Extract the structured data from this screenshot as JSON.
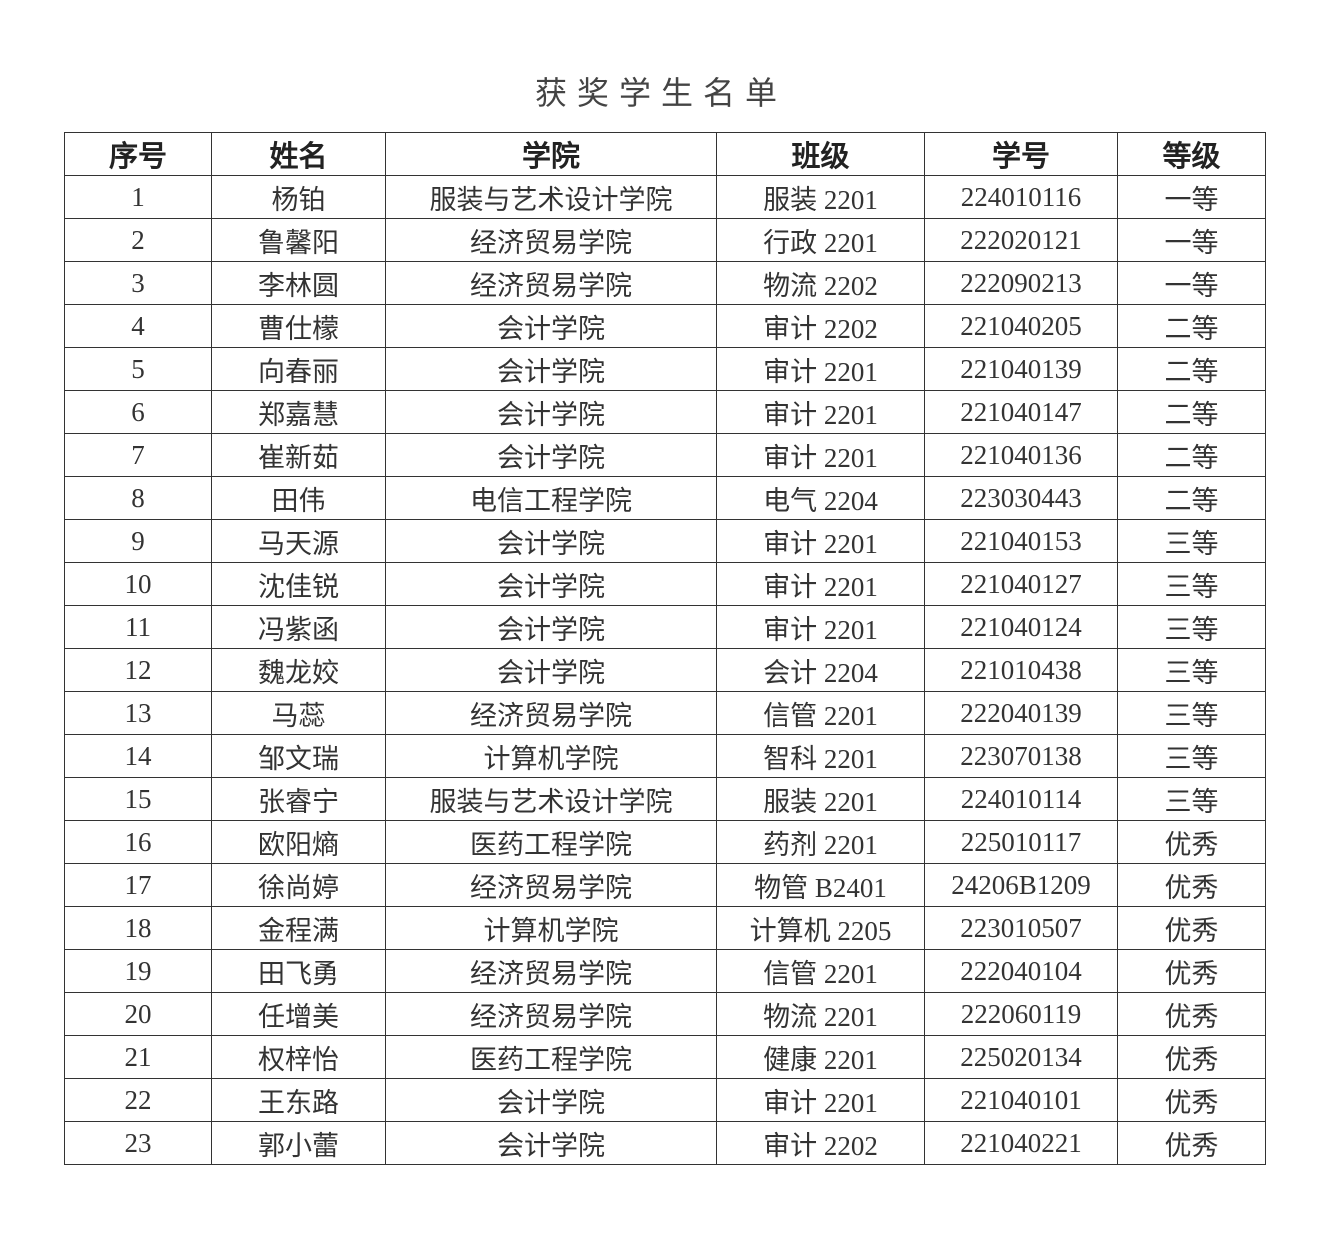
{
  "title": "获奖学生名单",
  "table": {
    "headers": [
      "序号",
      "姓名",
      "学院",
      "班级",
      "学号",
      "等级"
    ],
    "rows": [
      [
        "1",
        "杨铂",
        "服装与艺术设计学院",
        "服装 2201",
        "224010116",
        "一等"
      ],
      [
        "2",
        "鲁馨阳",
        "经济贸易学院",
        "行政 2201",
        "222020121",
        "一等"
      ],
      [
        "3",
        "李林圆",
        "经济贸易学院",
        "物流 2202",
        "222090213",
        "一等"
      ],
      [
        "4",
        "曹仕檬",
        "会计学院",
        "审计 2202",
        "221040205",
        "二等"
      ],
      [
        "5",
        "向春丽",
        "会计学院",
        "审计 2201",
        "221040139",
        "二等"
      ],
      [
        "6",
        "郑嘉慧",
        "会计学院",
        "审计 2201",
        "221040147",
        "二等"
      ],
      [
        "7",
        "崔新茹",
        "会计学院",
        "审计 2201",
        "221040136",
        "二等"
      ],
      [
        "8",
        "田伟",
        "电信工程学院",
        "电气 2204",
        "223030443",
        "二等"
      ],
      [
        "9",
        "马天源",
        "会计学院",
        "审计 2201",
        "221040153",
        "三等"
      ],
      [
        "10",
        "沈佳锐",
        "会计学院",
        "审计 2201",
        "221040127",
        "三等"
      ],
      [
        "11",
        "冯紫函",
        "会计学院",
        "审计 2201",
        "221040124",
        "三等"
      ],
      [
        "12",
        "魏龙姣",
        "会计学院",
        "会计 2204",
        "221010438",
        "三等"
      ],
      [
        "13",
        "马蕊",
        "经济贸易学院",
        "信管 2201",
        "222040139",
        "三等"
      ],
      [
        "14",
        "邹文瑞",
        "计算机学院",
        "智科 2201",
        "223070138",
        "三等"
      ],
      [
        "15",
        "张睿宁",
        "服装与艺术设计学院",
        "服装 2201",
        "224010114",
        "三等"
      ],
      [
        "16",
        "欧阳熵",
        "医药工程学院",
        "药剂 2201",
        "225010117",
        "优秀"
      ],
      [
        "17",
        "徐尚婷",
        "经济贸易学院",
        "物管 B2401",
        "24206B1209",
        "优秀"
      ],
      [
        "18",
        "金程满",
        "计算机学院",
        "计算机 2205",
        "223010507",
        "优秀"
      ],
      [
        "19",
        "田飞勇",
        "经济贸易学院",
        "信管 2201",
        "222040104",
        "优秀"
      ],
      [
        "20",
        "任增美",
        "经济贸易学院",
        "物流 2201",
        "222060119",
        "优秀"
      ],
      [
        "21",
        "权梓怡",
        "医药工程学院",
        "健康 2201",
        "225020134",
        "优秀"
      ],
      [
        "22",
        "王东路",
        "会计学院",
        "审计 2201",
        "221040101",
        "优秀"
      ],
      [
        "23",
        "郭小蕾",
        "会计学院",
        "审计 2202",
        "221040221",
        "优秀"
      ]
    ]
  }
}
